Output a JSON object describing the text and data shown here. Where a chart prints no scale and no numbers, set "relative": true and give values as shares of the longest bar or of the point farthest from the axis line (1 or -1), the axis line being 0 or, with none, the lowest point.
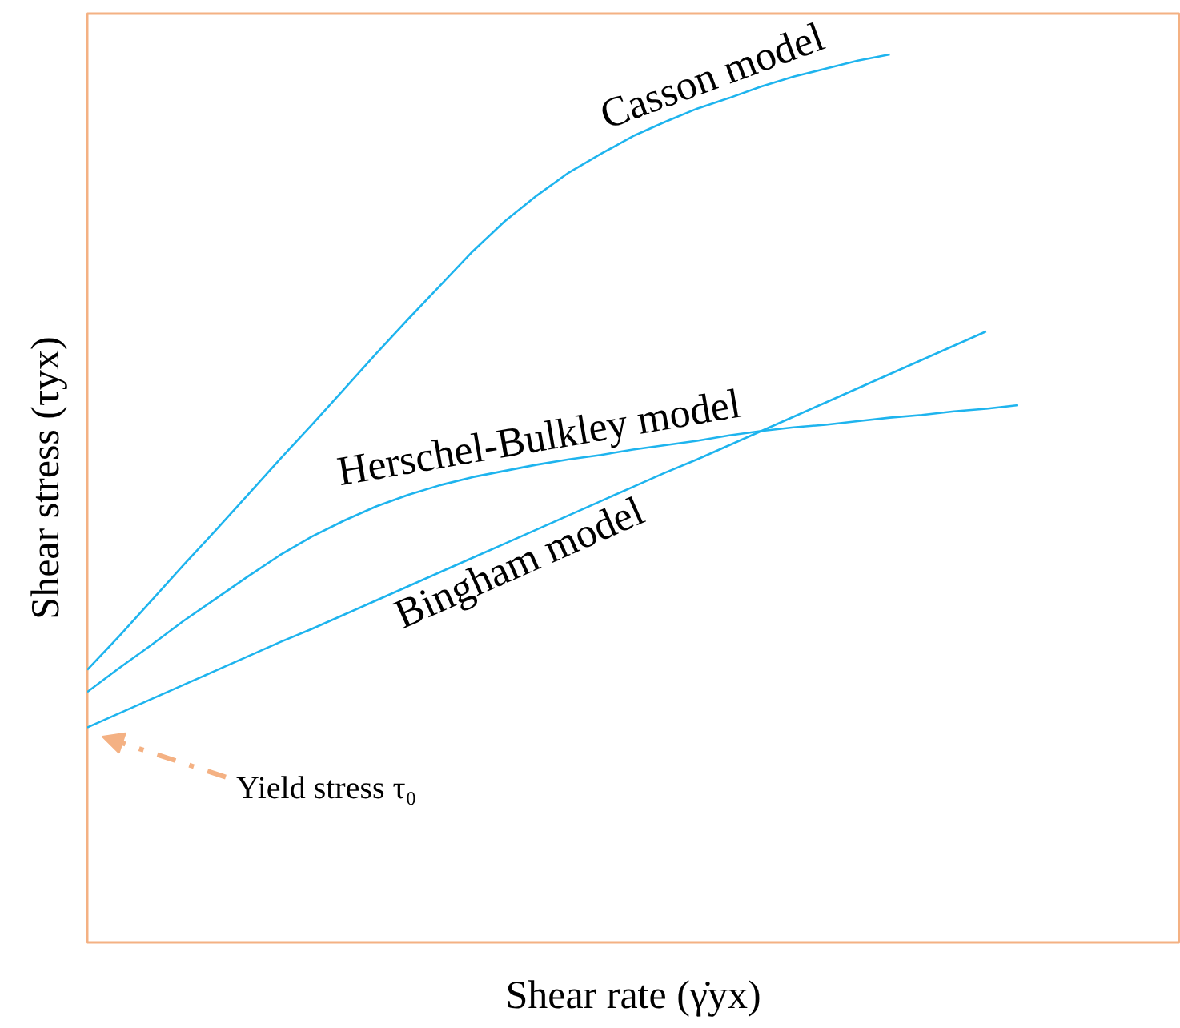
{
  "chart_data": {
    "type": "line",
    "relative": true,
    "xlabel": "Shear rate (γ̇yx)",
    "ylabel": "Shear stress (τyx)",
    "categories": [
      null,
      null,
      null,
      null,
      null,
      null,
      null,
      null,
      null,
      null,
      null,
      null,
      null,
      null,
      null,
      null,
      null,
      null,
      null,
      null,
      null,
      null,
      null,
      null,
      null,
      null,
      null,
      null,
      null,
      null
    ],
    "series": [
      {
        "name": "Casson model",
        "color": "#1eb4ee",
        "values": [
          0.307,
          0.345,
          0.385,
          0.425,
          0.464,
          0.504,
          0.544,
          0.583,
          0.623,
          0.663,
          0.702,
          0.74,
          0.778,
          0.812,
          0.841,
          0.867,
          0.888,
          0.908,
          0.924,
          0.939,
          0.951,
          0.964,
          0.975,
          0.984,
          0.993,
          1.0,
          null,
          null,
          null,
          null
        ]
      },
      {
        "name": "Herschel-Bulkley model",
        "color": "#1eb4ee",
        "values": [
          0.282,
          0.309,
          0.335,
          0.362,
          0.387,
          0.412,
          0.436,
          0.457,
          0.475,
          0.491,
          0.504,
          0.515,
          0.524,
          0.531,
          0.538,
          0.544,
          0.549,
          0.555,
          0.56,
          0.565,
          0.571,
          0.576,
          0.58,
          0.583,
          0.587,
          0.591,
          0.594,
          0.598,
          0.601,
          0.605
        ]
      },
      {
        "name": "Bingham model",
        "color": "#1eb4ee",
        "values": [
          0.242,
          0.258,
          0.274,
          0.29,
          0.306,
          0.322,
          0.338,
          0.353,
          0.369,
          0.385,
          0.401,
          0.417,
          0.433,
          0.449,
          0.465,
          0.481,
          0.497,
          0.513,
          0.529,
          0.544,
          0.56,
          0.576,
          0.592,
          0.608,
          0.624,
          0.64,
          0.656,
          0.672,
          0.688,
          null
        ]
      }
    ],
    "annotations": [
      "Yield stress τ₀"
    ],
    "line_style": "solid",
    "marker": "none"
  }
}
